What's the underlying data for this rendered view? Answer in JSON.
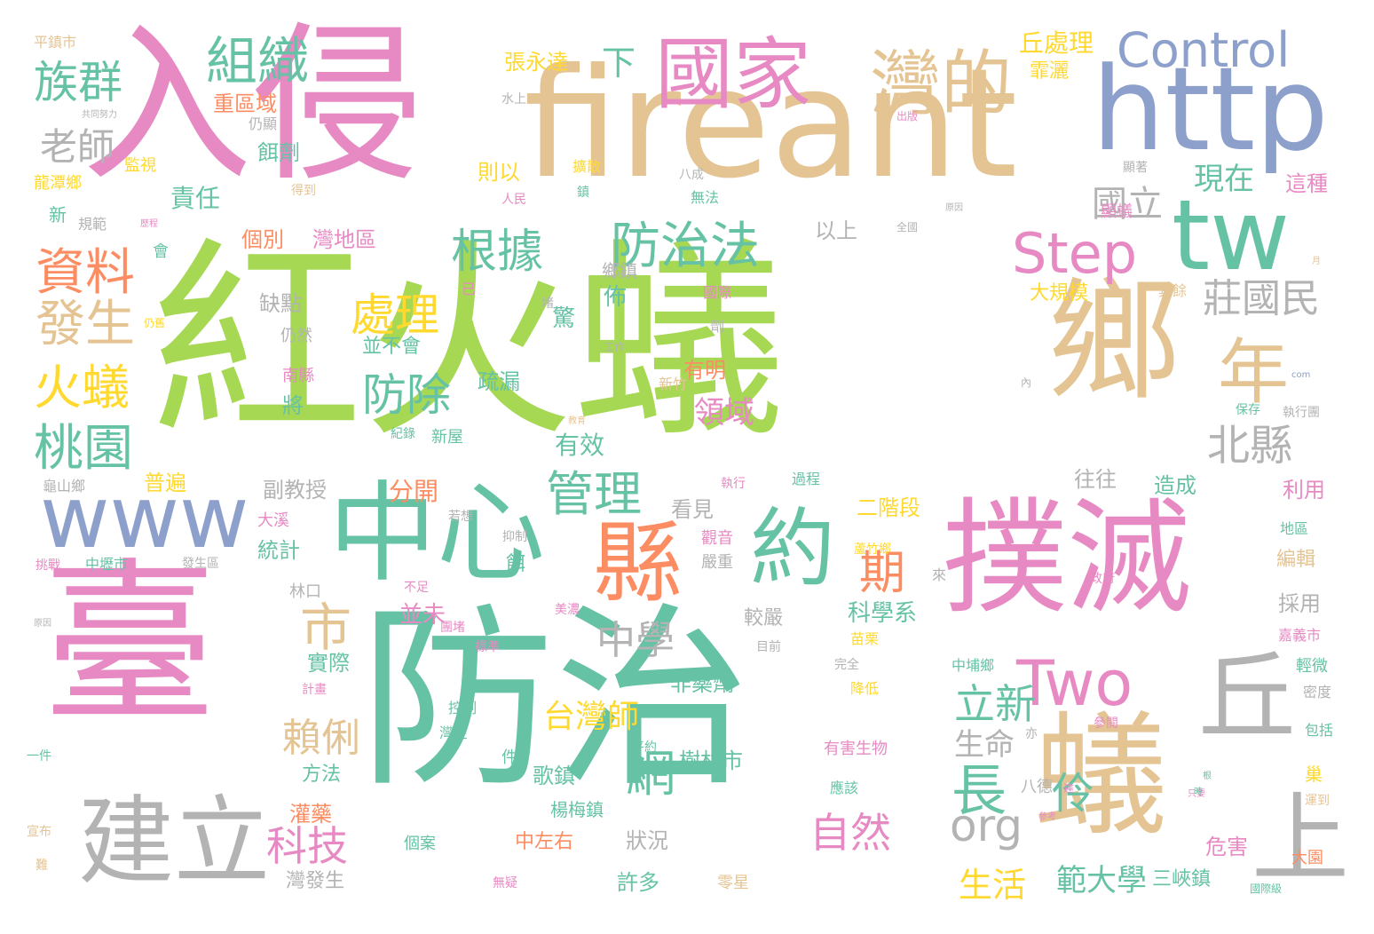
{
  "palette": {
    "green": "#a6d854",
    "teal": "#66c2a5",
    "pink": "#e78ac3",
    "tan": "#e5c494",
    "blue": "#8da0cb",
    "gray": "#b3b3b3",
    "orange": "#fc8d62",
    "yellow": "#ffd92f"
  },
  "words": [
    {
      "text": "紅火蟻",
      "color": "green"
    },
    {
      "text": "防治",
      "color": "teal"
    },
    {
      "text": "臺",
      "color": "pink"
    },
    {
      "text": "入侵",
      "color": "pink"
    },
    {
      "text": "fireant",
      "color": "tan"
    },
    {
      "text": "http",
      "color": "blue"
    },
    {
      "text": "撲滅",
      "color": "pink"
    },
    {
      "text": "鄉",
      "color": "tan"
    },
    {
      "text": "蟻",
      "color": "tan"
    },
    {
      "text": "中心",
      "color": "teal"
    },
    {
      "text": "tw",
      "color": "teal"
    },
    {
      "text": "www",
      "color": "blue"
    },
    {
      "text": "國家",
      "color": "pink"
    },
    {
      "text": "建立",
      "color": "gray"
    },
    {
      "text": "縣",
      "color": "orange"
    },
    {
      "text": "丘",
      "color": "gray"
    },
    {
      "text": "上",
      "color": "gray"
    },
    {
      "text": "約",
      "color": "teal"
    },
    {
      "text": "灣的",
      "color": "tan"
    },
    {
      "text": "年",
      "color": "tan"
    },
    {
      "text": "Control",
      "color": "blue"
    },
    {
      "text": "Step",
      "color": "pink"
    },
    {
      "text": "Two",
      "color": "pink"
    },
    {
      "text": "組織",
      "color": "teal"
    },
    {
      "text": "族群",
      "color": "teal"
    },
    {
      "text": "老師",
      "color": "gray"
    },
    {
      "text": "資料",
      "color": "orange"
    },
    {
      "text": "發生",
      "color": "tan"
    },
    {
      "text": "火蟻",
      "color": "yellow"
    },
    {
      "text": "桃園",
      "color": "teal"
    },
    {
      "text": "市",
      "color": "tan"
    },
    {
      "text": "根據",
      "color": "teal"
    },
    {
      "text": "防治法",
      "color": "teal"
    },
    {
      "text": "處理",
      "color": "yellow"
    },
    {
      "text": "防除",
      "color": "teal"
    },
    {
      "text": "管理",
      "color": "teal"
    },
    {
      "text": "中學",
      "color": "gray"
    },
    {
      "text": "網",
      "color": "teal"
    },
    {
      "text": "期",
      "color": "orange"
    },
    {
      "text": "長",
      "color": "teal"
    },
    {
      "text": "立新",
      "color": "teal"
    },
    {
      "text": "自然",
      "color": "pink"
    },
    {
      "text": "org",
      "color": "gray"
    },
    {
      "text": "北縣",
      "color": "gray"
    },
    {
      "text": "莊國民",
      "color": "gray"
    },
    {
      "text": "國立",
      "color": "gray"
    },
    {
      "text": "現在",
      "color": "teal"
    },
    {
      "text": "科技",
      "color": "pink"
    },
    {
      "text": "生活",
      "color": "yellow"
    },
    {
      "text": "範大學",
      "color": "teal"
    },
    {
      "text": "台灣師",
      "color": "yellow"
    },
    {
      "text": "賴俐",
      "color": "tan"
    },
    {
      "text": "伶",
      "color": "teal"
    },
    {
      "text": "生命",
      "color": "gray"
    },
    {
      "text": "下",
      "color": "teal"
    },
    {
      "text": "張永達",
      "color": "yellow"
    },
    {
      "text": "丘處理",
      "color": "yellow"
    },
    {
      "text": "平鎮市",
      "color": "tan"
    },
    {
      "text": "重區域",
      "color": "orange"
    },
    {
      "text": "共同努力",
      "color": "gray"
    },
    {
      "text": "仍顯",
      "color": "gray"
    },
    {
      "text": "餌劑",
      "color": "teal"
    },
    {
      "text": "監視",
      "color": "yellow"
    },
    {
      "text": "龍潭鄉",
      "color": "yellow"
    },
    {
      "text": "責任",
      "color": "teal"
    },
    {
      "text": "則以",
      "color": "yellow"
    },
    {
      "text": "擴散",
      "color": "yellow"
    },
    {
      "text": "新",
      "color": "teal"
    },
    {
      "text": "規範",
      "color": "gray"
    },
    {
      "text": "個別",
      "color": "orange"
    },
    {
      "text": "灣地區",
      "color": "pink"
    },
    {
      "text": "以上",
      "color": "gray"
    },
    {
      "text": "鄉鎮",
      "color": "gray"
    },
    {
      "text": "缺點",
      "color": "gray"
    },
    {
      "text": "仍然",
      "color": "gray"
    },
    {
      "text": "並不會",
      "color": "teal"
    },
    {
      "text": "疏漏",
      "color": "teal"
    },
    {
      "text": "佈",
      "color": "teal"
    },
    {
      "text": "驚",
      "color": "teal"
    },
    {
      "text": "有明",
      "color": "orange"
    },
    {
      "text": "領域",
      "color": "pink"
    },
    {
      "text": "大規模",
      "color": "yellow"
    },
    {
      "text": "霏灑",
      "color": "yellow"
    },
    {
      "text": "顯著",
      "color": "gray"
    },
    {
      "text": "這種",
      "color": "pink"
    },
    {
      "text": "顯蟻",
      "color": "pink"
    },
    {
      "text": "南縣",
      "color": "pink"
    },
    {
      "text": "將",
      "color": "teal"
    },
    {
      "text": "新屋",
      "color": "teal"
    },
    {
      "text": "紀錄",
      "color": "teal"
    },
    {
      "text": "有效",
      "color": "teal"
    },
    {
      "text": "副教授",
      "color": "gray"
    },
    {
      "text": "普遍",
      "color": "yellow"
    },
    {
      "text": "龜山鄉",
      "color": "gray"
    },
    {
      "text": "分開",
      "color": "orange"
    },
    {
      "text": "看見",
      "color": "gray"
    },
    {
      "text": "二階段",
      "color": "yellow"
    },
    {
      "text": "往往",
      "color": "gray"
    },
    {
      "text": "造成",
      "color": "teal"
    },
    {
      "text": "利用",
      "color": "pink"
    },
    {
      "text": "統計",
      "color": "teal"
    },
    {
      "text": "大溪",
      "color": "pink"
    },
    {
      "text": "中壢市",
      "color": "teal"
    },
    {
      "text": "發生區",
      "color": "gray"
    },
    {
      "text": "抑制",
      "color": "gray"
    },
    {
      "text": "餌",
      "color": "teal"
    },
    {
      "text": "觀音",
      "color": "pink"
    },
    {
      "text": "嚴重",
      "color": "gray"
    },
    {
      "text": "蘆竹鄉",
      "color": "yellow"
    },
    {
      "text": "林口",
      "color": "gray"
    },
    {
      "text": "並未",
      "color": "pink"
    },
    {
      "text": "科學系",
      "color": "teal"
    },
    {
      "text": "採用",
      "color": "gray"
    },
    {
      "text": "編輯",
      "color": "tan"
    },
    {
      "text": "嘉義市",
      "color": "pink"
    },
    {
      "text": "較嚴",
      "color": "gray"
    },
    {
      "text": "苗栗",
      "color": "yellow"
    },
    {
      "text": "實際",
      "color": "teal"
    },
    {
      "text": "非藥劑",
      "color": "teal"
    },
    {
      "text": "中埔鄉",
      "color": "teal"
    },
    {
      "text": "輕微",
      "color": "teal"
    },
    {
      "text": "方法",
      "color": "teal"
    },
    {
      "text": "樹林市",
      "color": "teal"
    },
    {
      "text": "有害生物",
      "color": "pink"
    },
    {
      "text": "歌鎮",
      "color": "teal"
    },
    {
      "text": "八德",
      "color": "gray"
    },
    {
      "text": "狀況",
      "color": "gray"
    },
    {
      "text": "灌藥",
      "color": "orange"
    },
    {
      "text": "楊梅鎮",
      "color": "teal"
    },
    {
      "text": "危害",
      "color": "pink"
    },
    {
      "text": "個案",
      "color": "teal"
    },
    {
      "text": "中左右",
      "color": "orange"
    },
    {
      "text": "許多",
      "color": "teal"
    },
    {
      "text": "三峽鎮",
      "color": "teal"
    },
    {
      "text": "灣發生",
      "color": "gray"
    },
    {
      "text": "零星",
      "color": "tan"
    },
    {
      "text": "大園",
      "color": "orange"
    },
    {
      "text": "巢",
      "color": "yellow"
    },
    {
      "text": "保存",
      "color": "teal"
    },
    {
      "text": "密度",
      "color": "gray"
    },
    {
      "text": "包括",
      "color": "teal"
    },
    {
      "text": "運到",
      "color": "tan"
    },
    {
      "text": "無疑",
      "color": "pink"
    },
    {
      "text": "宣布",
      "color": "tan"
    },
    {
      "text": "一件",
      "color": "teal"
    },
    {
      "text": "八成",
      "color": "gray"
    },
    {
      "text": "無法",
      "color": "teal"
    },
    {
      "text": "人民",
      "color": "pink"
    },
    {
      "text": "水上",
      "color": "gray"
    },
    {
      "text": "出版",
      "color": "pink"
    },
    {
      "text": "全國",
      "color": "gray"
    },
    {
      "text": "國際",
      "color": "pink"
    },
    {
      "text": "工作",
      "color": "gray"
    },
    {
      "text": "新竹",
      "color": "tan"
    },
    {
      "text": "教育",
      "color": "tan"
    },
    {
      "text": "已",
      "color": "pink"
    },
    {
      "text": "堵",
      "color": "gray"
    },
    {
      "text": "月",
      "color": "tan"
    },
    {
      "text": "其餘",
      "color": "tan"
    },
    {
      "text": "內",
      "color": "gray"
    },
    {
      "text": "com",
      "color": "blue"
    },
    {
      "text": "執行團",
      "color": "gray"
    },
    {
      "text": "過程",
      "color": "teal"
    },
    {
      "text": "執行",
      "color": "pink"
    },
    {
      "text": "若想",
      "color": "gray"
    },
    {
      "text": "不足",
      "color": "pink"
    },
    {
      "text": "美濃",
      "color": "pink"
    },
    {
      "text": "團堵",
      "color": "pink"
    },
    {
      "text": "標準",
      "color": "pink"
    },
    {
      "text": "目前",
      "color": "gray"
    },
    {
      "text": "完全",
      "color": "gray"
    },
    {
      "text": "降低",
      "color": "yellow"
    },
    {
      "text": "計畫",
      "color": "pink"
    },
    {
      "text": "控制",
      "color": "teal"
    },
    {
      "text": "灣在",
      "color": "teal"
    },
    {
      "text": "件",
      "color": "teal"
    },
    {
      "text": "平約",
      "color": "teal"
    },
    {
      "text": "應該",
      "color": "teal"
    },
    {
      "text": "挑戰",
      "color": "pink"
    },
    {
      "text": "地區",
      "color": "teal"
    },
    {
      "text": "政府",
      "color": "pink"
    },
    {
      "text": "參閱",
      "color": "pink"
    },
    {
      "text": "難",
      "color": "tan"
    },
    {
      "text": "國際級",
      "color": "teal"
    },
    {
      "text": "得到",
      "color": "tan"
    },
    {
      "text": "鎮",
      "color": "teal"
    },
    {
      "text": "亦",
      "color": "gray"
    },
    {
      "text": "劑",
      "color": "gray"
    },
    {
      "text": "來",
      "color": "gray"
    },
    {
      "text": "會",
      "color": "teal"
    },
    {
      "text": "仍舊",
      "color": "yellow"
    },
    {
      "text": "歷程",
      "color": "pink"
    },
    {
      "text": "原因",
      "color": "gray"
    },
    {
      "text": "只要",
      "color": "pink"
    },
    {
      "text": "根",
      "color": "teal"
    },
    {
      "text": "時",
      "color": "teal"
    },
    {
      "text": "達",
      "color": "pink"
    },
    {
      "text": "參考",
      "color": "pink"
    },
    {
      "text": "原因",
      "color": "gray"
    }
  ]
}
